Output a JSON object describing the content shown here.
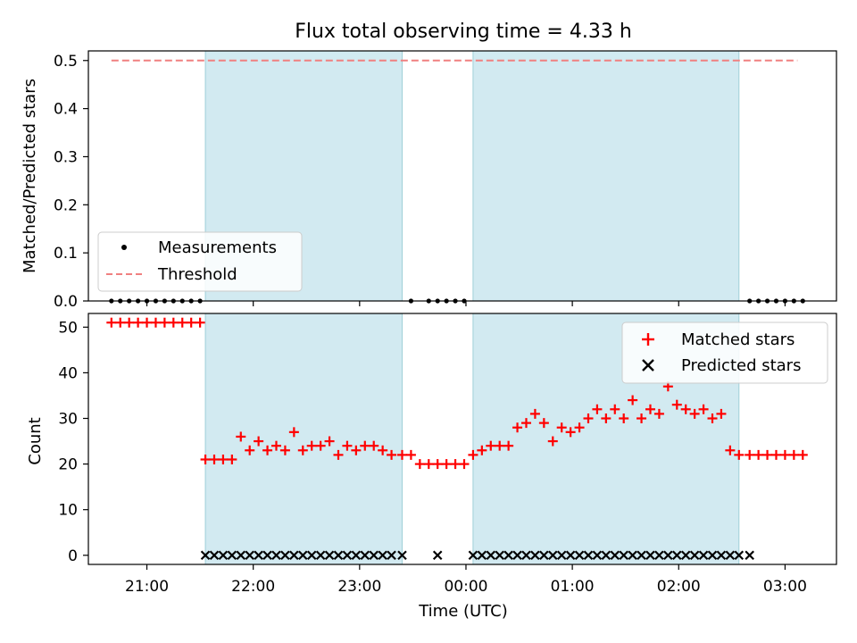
{
  "chart_data": [
    {
      "type": "scatter",
      "title": "Flux total observing time = 4.33 h",
      "ylabel": "Matched/Predicted stars",
      "xlabel": "",
      "ylim": [
        0,
        0.52
      ],
      "yticks": [
        0.0,
        0.1,
        0.2,
        0.3,
        0.4,
        0.5
      ],
      "ytick_labels": [
        "0.0",
        "0.1",
        "0.2",
        "0.3",
        "0.4",
        "0.5"
      ],
      "grid": false,
      "legend": {
        "position": "lower-left",
        "entries": [
          "Measurements",
          "Threshold"
        ]
      },
      "shaded_spans": [
        [
          "21:33",
          "23:24"
        ],
        [
          "00:04",
          "02:34"
        ]
      ],
      "span_color": "#add8e6",
      "series": [
        {
          "name": "Measurements",
          "marker": "dot",
          "color": "#000000",
          "x": [
            "20:40",
            "20:45",
            "20:50",
            "20:55",
            "21:00",
            "21:05",
            "21:10",
            "21:15",
            "21:20",
            "21:25",
            "21:30",
            "23:29",
            "23:39",
            "23:44",
            "23:49",
            "23:54",
            "23:59",
            "02:40",
            "02:45",
            "02:50",
            "02:55",
            "03:00",
            "03:05",
            "03:10"
          ],
          "values": [
            0,
            0,
            0,
            0,
            0,
            0,
            0,
            0,
            0,
            0,
            0,
            0,
            0,
            0,
            0,
            0,
            0,
            0,
            0,
            0,
            0,
            0,
            0,
            0
          ]
        },
        {
          "name": "Threshold",
          "line_style": "dashed",
          "color": "#f08080",
          "x": [
            "20:40",
            "03:07"
          ],
          "values": [
            0.5,
            0.5
          ]
        }
      ]
    },
    {
      "type": "scatter",
      "title": "",
      "ylabel": "Count",
      "xlabel": "Time (UTC)",
      "ylim": [
        -2,
        53
      ],
      "yticks": [
        0,
        10,
        20,
        30,
        40,
        50
      ],
      "ytick_labels": [
        "0",
        "10",
        "20",
        "30",
        "40",
        "50"
      ],
      "xticks": [
        "21:00",
        "22:00",
        "23:00",
        "00:00",
        "01:00",
        "02:00",
        "03:00"
      ],
      "xlim": [
        "20:27",
        "03:29"
      ],
      "grid": false,
      "legend": {
        "position": "upper-right",
        "entries": [
          "Matched stars",
          "Predicted stars"
        ]
      },
      "shaded_spans": [
        [
          "21:33",
          "23:24"
        ],
        [
          "00:04",
          "02:34"
        ]
      ],
      "span_color": "#add8e6",
      "series": [
        {
          "name": "Matched stars",
          "marker": "plus",
          "color": "#ff0000",
          "x": [
            "20:40",
            "20:45",
            "20:50",
            "20:55",
            "21:00",
            "21:05",
            "21:10",
            "21:15",
            "21:20",
            "21:25",
            "21:30",
            "21:33",
            "21:38",
            "21:43",
            "21:48",
            "21:53",
            "21:58",
            "22:03",
            "22:08",
            "22:13",
            "22:18",
            "22:23",
            "22:28",
            "22:33",
            "22:38",
            "22:43",
            "22:48",
            "22:53",
            "22:58",
            "23:03",
            "23:08",
            "23:13",
            "23:18",
            "23:24",
            "23:29",
            "23:34",
            "23:39",
            "23:44",
            "23:49",
            "23:54",
            "23:59",
            "00:04",
            "00:09",
            "00:14",
            "00:19",
            "00:24",
            "00:29",
            "00:34",
            "00:39",
            "00:44",
            "00:49",
            "00:54",
            "00:59",
            "01:04",
            "01:09",
            "01:14",
            "01:19",
            "01:24",
            "01:29",
            "01:34",
            "01:39",
            "01:44",
            "01:49",
            "01:54",
            "01:59",
            "02:04",
            "02:09",
            "02:14",
            "02:19",
            "02:24",
            "02:29",
            "02:34",
            "02:40",
            "02:45",
            "02:50",
            "02:55",
            "03:00",
            "03:05",
            "03:10"
          ],
          "values": [
            51,
            51,
            51,
            51,
            51,
            51,
            51,
            51,
            51,
            51,
            51,
            21,
            21,
            21,
            21,
            26,
            23,
            25,
            23,
            24,
            23,
            27,
            23,
            24,
            24,
            25,
            22,
            24,
            23,
            24,
            24,
            23,
            22,
            22,
            22,
            20,
            20,
            20,
            20,
            20,
            20,
            22,
            23,
            24,
            24,
            24,
            28,
            29,
            31,
            29,
            25,
            28,
            27,
            28,
            30,
            32,
            30,
            32,
            30,
            34,
            30,
            32,
            31,
            37,
            33,
            32,
            31,
            32,
            30,
            31,
            23,
            22,
            22,
            22,
            22,
            22,
            22,
            22,
            22
          ]
        },
        {
          "name": "Predicted stars",
          "marker": "x",
          "color": "#000000",
          "x": [
            "21:33",
            "21:38",
            "21:43",
            "21:48",
            "21:53",
            "21:58",
            "22:03",
            "22:08",
            "22:13",
            "22:18",
            "22:23",
            "22:28",
            "22:33",
            "22:38",
            "22:43",
            "22:48",
            "22:53",
            "22:58",
            "23:03",
            "23:08",
            "23:13",
            "23:18",
            "23:24",
            "23:44",
            "00:04",
            "00:09",
            "00:14",
            "00:19",
            "00:24",
            "00:29",
            "00:34",
            "00:39",
            "00:44",
            "00:49",
            "00:54",
            "00:59",
            "01:04",
            "01:09",
            "01:14",
            "01:19",
            "01:24",
            "01:29",
            "01:34",
            "01:39",
            "01:44",
            "01:49",
            "01:54",
            "01:59",
            "02:04",
            "02:09",
            "02:14",
            "02:19",
            "02:24",
            "02:29",
            "02:34",
            "02:40"
          ],
          "values": [
            0,
            0,
            0,
            0,
            0,
            0,
            0,
            0,
            0,
            0,
            0,
            0,
            0,
            0,
            0,
            0,
            0,
            0,
            0,
            0,
            0,
            0,
            0,
            0,
            0,
            0,
            0,
            0,
            0,
            0,
            0,
            0,
            0,
            0,
            0,
            0,
            0,
            0,
            0,
            0,
            0,
            0,
            0,
            0,
            0,
            0,
            0,
            0,
            0,
            0,
            0,
            0,
            0,
            0,
            0,
            0
          ]
        }
      ]
    }
  ]
}
